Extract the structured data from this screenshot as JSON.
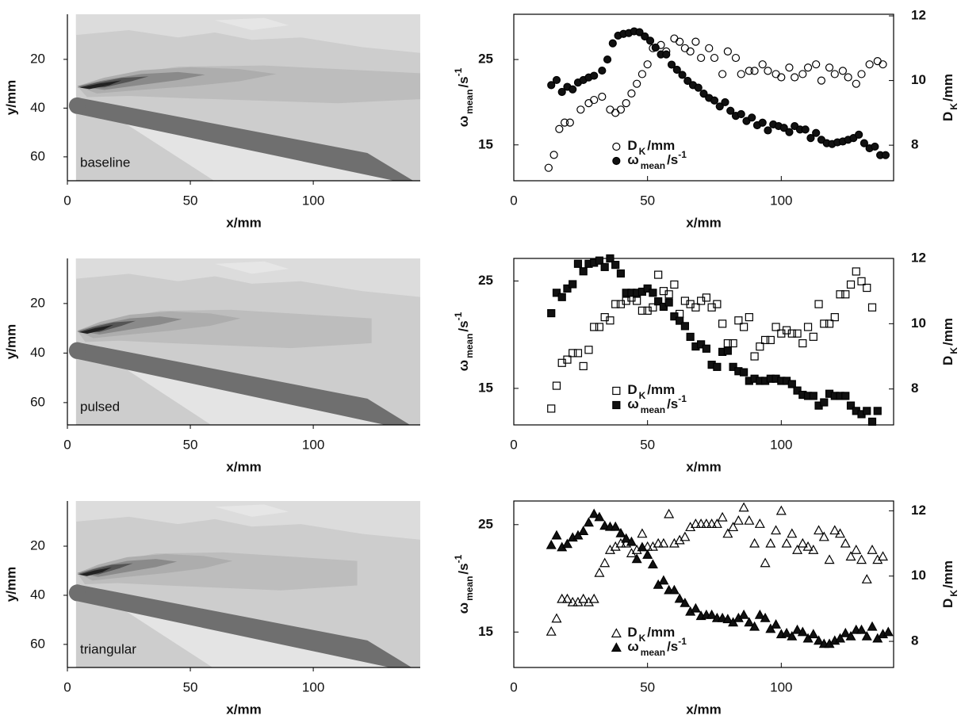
{
  "chart_data": [
    {
      "type": "contour",
      "label": "baseline",
      "xlabel": "x/mm",
      "ylabel": "y/mm",
      "xlim": [
        0,
        143.5
      ],
      "ylim": [
        1.5,
        69.8
      ],
      "y_reversed": true,
      "xticks": [
        0,
        50,
        100
      ],
      "yticks": [
        20,
        40,
        60
      ]
    },
    {
      "type": "scatter",
      "xlabel": "x/mm",
      "ylabel": {
        "symbol": "ω",
        "sub": "mean",
        "unit": "/s",
        "sup": "-1"
      },
      "y2label": {
        "symbol": "D",
        "sub": "K",
        "unit": "/mm"
      },
      "xlim": [
        0,
        142
      ],
      "ylim": [
        10.8,
        30.3
      ],
      "y2lim": [
        6.9,
        12.05
      ],
      "xticks": [
        0,
        50,
        100
      ],
      "yticks": [
        15,
        25
      ],
      "y2ticks": [
        8,
        10,
        12
      ],
      "legend": "lower center",
      "series": [
        {
          "name": {
            "symbol": "D",
            "sub": "K",
            "unit": "/mm"
          },
          "marker": "circle",
          "fill": "none",
          "color": "#000000",
          "axis": "y2",
          "x": [
            13,
            15,
            17,
            19,
            21,
            25,
            28,
            30,
            33,
            36,
            38,
            40,
            42,
            44,
            46,
            48,
            50,
            52,
            55,
            57,
            60,
            62,
            64,
            66,
            68,
            70,
            73,
            75,
            78,
            80,
            83,
            85,
            88,
            90,
            93,
            95,
            98,
            100,
            103,
            105,
            108,
            110,
            113,
            115,
            118,
            120,
            123,
            125,
            128,
            130,
            133,
            136,
            138
          ],
          "values": [
            7.3,
            7.7,
            8.5,
            8.7,
            8.7,
            9.1,
            9.3,
            9.4,
            9.5,
            9.1,
            9.0,
            9.1,
            9.3,
            9.6,
            9.9,
            10.2,
            10.5,
            11.0,
            11.1,
            10.9,
            11.3,
            11.2,
            11.0,
            10.9,
            11.2,
            10.7,
            11.0,
            10.7,
            10.2,
            10.9,
            10.7,
            10.2,
            10.3,
            10.3,
            10.5,
            10.3,
            10.2,
            10.1,
            10.4,
            10.1,
            10.2,
            10.4,
            10.5,
            10.0,
            10.4,
            10.2,
            10.3,
            10.1,
            9.9,
            10.2,
            10.5,
            10.6,
            10.5
          ]
        },
        {
          "name": {
            "symbol": "ω",
            "sub": "mean",
            "unit": "/s",
            "sup": "-1"
          },
          "marker": "circle",
          "fill": "#111111",
          "color": "#000000",
          "x": [
            14,
            16,
            18,
            20,
            22,
            24,
            26,
            28,
            30,
            33,
            35,
            37,
            39,
            41,
            43,
            45,
            47,
            49,
            51,
            53,
            55,
            57,
            59,
            61,
            63,
            65,
            67,
            69,
            71,
            73,
            75,
            77,
            79,
            81,
            83,
            85,
            87,
            89,
            91,
            93,
            95,
            97,
            99,
            101,
            103,
            105,
            107,
            109,
            111,
            113,
            115,
            117,
            119,
            121,
            123,
            125,
            127,
            129,
            131,
            133,
            135,
            137,
            139
          ],
          "values": [
            22.0,
            22.6,
            21.2,
            21.8,
            21.5,
            22.3,
            22.6,
            22.9,
            23.1,
            23.7,
            25.0,
            26.9,
            27.8,
            28.0,
            28.1,
            28.3,
            28.2,
            27.7,
            27.2,
            26.4,
            25.6,
            25.6,
            24.4,
            23.8,
            23.2,
            22.5,
            22.0,
            21.7,
            21.0,
            20.5,
            20.2,
            19.5,
            20.0,
            19.0,
            18.4,
            18.6,
            17.8,
            18.2,
            17.3,
            17.6,
            16.7,
            17.4,
            17.2,
            17.0,
            16.5,
            17.2,
            16.8,
            16.8,
            15.8,
            16.4,
            15.6,
            15.2,
            15.1,
            15.3,
            15.4,
            15.6,
            15.8,
            16.2,
            15.2,
            14.6,
            14.8,
            13.8,
            13.8
          ]
        }
      ]
    },
    {
      "type": "contour",
      "label": "pulsed",
      "xlabel": "x/mm",
      "ylabel": "y/mm",
      "xlim": [
        0,
        143.5
      ],
      "ylim": [
        1.8,
        69
      ],
      "y_reversed": true,
      "xticks": [
        0,
        50,
        100
      ],
      "yticks": [
        20,
        40,
        60
      ]
    },
    {
      "type": "scatter",
      "xlabel": "x/mm",
      "ylabel": {
        "symbol": "ω",
        "sub": "mean",
        "unit": "/s",
        "sup": "-1"
      },
      "y2label": {
        "symbol": "D",
        "sub": "K",
        "unit": "/mm"
      },
      "xlim": [
        0,
        142
      ],
      "ylim": [
        11.6,
        27.1
      ],
      "y2lim": [
        6.9,
        12
      ],
      "xticks": [
        0,
        50,
        100
      ],
      "yticks": [
        15,
        25
      ],
      "y2ticks": [
        8,
        10,
        12
      ],
      "legend": "lower center",
      "series": [
        {
          "name": {
            "symbol": "D",
            "sub": "K",
            "unit": "/mm"
          },
          "marker": "square",
          "fill": "none",
          "color": "#000000",
          "axis": "y2",
          "x": [
            14,
            16,
            18,
            20,
            22,
            24,
            26,
            28,
            30,
            32,
            34,
            36,
            38,
            40,
            42,
            44,
            46,
            48,
            50,
            52,
            54,
            56,
            58,
            60,
            62,
            64,
            66,
            68,
            70,
            72,
            74,
            76,
            78,
            80,
            82,
            84,
            86,
            88,
            90,
            92,
            94,
            96,
            98,
            100,
            102,
            104,
            106,
            108,
            110,
            112,
            114,
            116,
            118,
            120,
            122,
            124,
            126,
            128,
            130,
            132,
            134
          ],
          "values": [
            7.4,
            8.1,
            8.8,
            8.9,
            9.1,
            9.1,
            8.7,
            9.2,
            9.9,
            9.9,
            10.2,
            10.1,
            10.6,
            10.6,
            10.7,
            10.8,
            10.7,
            10.4,
            10.4,
            10.5,
            11.5,
            11.0,
            10.9,
            11.2,
            10.3,
            10.7,
            10.6,
            10.5,
            10.7,
            10.8,
            10.5,
            10.6,
            10.0,
            9.4,
            9.4,
            10.1,
            9.9,
            10.2,
            9.0,
            9.3,
            9.5,
            9.5,
            9.9,
            9.7,
            9.8,
            9.7,
            9.7,
            9.4,
            9.9,
            9.6,
            10.6,
            10.0,
            10.0,
            10.2,
            10.9,
            10.9,
            11.2,
            11.6,
            11.3,
            11.1,
            10.5
          ]
        },
        {
          "name": {
            "symbol": "ω",
            "sub": "mean",
            "unit": "/s",
            "sup": "-1"
          },
          "marker": "square",
          "fill": "#111111",
          "color": "#000000",
          "x": [
            14,
            16,
            18,
            20,
            22,
            24,
            26,
            28,
            30,
            32,
            34,
            36,
            38,
            40,
            42,
            44,
            46,
            48,
            50,
            52,
            54,
            56,
            58,
            60,
            62,
            64,
            66,
            68,
            70,
            72,
            74,
            76,
            78,
            80,
            82,
            84,
            86,
            88,
            90,
            92,
            94,
            96,
            98,
            100,
            102,
            104,
            106,
            108,
            110,
            112,
            114,
            116,
            118,
            120,
            122,
            124,
            126,
            128,
            130,
            132,
            134,
            136
          ],
          "values": [
            22.0,
            23.9,
            23.5,
            24.3,
            24.7,
            26.6,
            25.9,
            26.6,
            26.7,
            26.9,
            26.3,
            27.1,
            26.5,
            25.7,
            23.9,
            23.9,
            23.9,
            24.0,
            24.3,
            23.9,
            23.1,
            22.6,
            23.0,
            21.7,
            21.3,
            20.8,
            19.8,
            18.9,
            19.1,
            18.7,
            17.2,
            17.0,
            18.4,
            18.5,
            17.0,
            16.6,
            16.5,
            15.7,
            15.9,
            15.7,
            15.7,
            15.9,
            15.9,
            15.7,
            15.7,
            15.4,
            14.8,
            14.4,
            14.3,
            14.3,
            13.4,
            13.7,
            14.5,
            14.3,
            14.3,
            14.3,
            13.4,
            12.9,
            12.6,
            12.9,
            11.9,
            12.9
          ]
        }
      ]
    },
    {
      "type": "contour",
      "label": "triangular",
      "xlabel": "x/mm",
      "ylabel": "y/mm",
      "xlim": [
        0,
        143.5
      ],
      "ylim": [
        1.6,
        69.4
      ],
      "y_reversed": true,
      "xticks": [
        0,
        50,
        100
      ],
      "yticks": [
        20,
        40,
        60
      ]
    },
    {
      "type": "scatter",
      "xlabel": "x/mm",
      "ylabel": {
        "symbol": "ω",
        "sub": "mean",
        "unit": "/s",
        "sup": "-1"
      },
      "y2label": {
        "symbol": "D",
        "sub": "K",
        "unit": "/mm"
      },
      "xlim": [
        0,
        142
      ],
      "ylim": [
        11.7,
        27.2
      ],
      "y2lim": [
        7.2,
        12.3
      ],
      "xticks": [
        0,
        50,
        100
      ],
      "yticks": [
        15,
        25
      ],
      "y2ticks": [
        8,
        10,
        12
      ],
      "legend": "lower center",
      "series": [
        {
          "name": {
            "symbol": "D",
            "sub": "K",
            "unit": "/mm"
          },
          "marker": "triangle",
          "fill": "none",
          "color": "#000000",
          "axis": "y2",
          "x": [
            14,
            16,
            18,
            20,
            22,
            24,
            26,
            28,
            30,
            32,
            34,
            36,
            38,
            40,
            42,
            44,
            46,
            48,
            50,
            52,
            54,
            56,
            58,
            60,
            62,
            64,
            66,
            68,
            70,
            72,
            74,
            76,
            78,
            80,
            82,
            84,
            86,
            88,
            90,
            92,
            94,
            96,
            98,
            100,
            102,
            104,
            106,
            108,
            110,
            112,
            114,
            116,
            118,
            120,
            122,
            124,
            126,
            128,
            130,
            132,
            134,
            136,
            138
          ],
          "values": [
            8.3,
            8.7,
            9.3,
            9.3,
            9.2,
            9.2,
            9.3,
            9.2,
            9.3,
            10.1,
            10.4,
            10.8,
            10.9,
            11.0,
            11.0,
            10.7,
            10.8,
            11.3,
            10.9,
            10.9,
            11.0,
            11.0,
            11.9,
            11.0,
            11.1,
            11.2,
            11.5,
            11.6,
            11.6,
            11.6,
            11.6,
            11.6,
            11.8,
            11.3,
            11.5,
            11.7,
            12.1,
            11.7,
            11.0,
            11.6,
            10.4,
            11.0,
            11.4,
            12.0,
            11.0,
            11.3,
            10.8,
            11.0,
            10.9,
            10.8,
            11.4,
            11.2,
            10.5,
            11.4,
            11.3,
            11.0,
            10.6,
            10.8,
            10.5,
            9.9,
            10.8,
            10.5,
            10.6
          ]
        },
        {
          "name": {
            "symbol": "ω",
            "sub": "mean",
            "unit": "/s",
            "sup": "-1"
          },
          "marker": "triangle",
          "fill": "#111111",
          "color": "#000000",
          "x": [
            14,
            16,
            18,
            20,
            22,
            24,
            26,
            28,
            30,
            32,
            34,
            36,
            38,
            40,
            42,
            44,
            46,
            48,
            50,
            52,
            54,
            56,
            58,
            60,
            62,
            64,
            66,
            68,
            70,
            72,
            74,
            76,
            78,
            80,
            82,
            84,
            86,
            88,
            90,
            92,
            94,
            96,
            98,
            100,
            102,
            104,
            106,
            108,
            110,
            112,
            114,
            116,
            118,
            120,
            122,
            124,
            126,
            128,
            130,
            132,
            134,
            136,
            138,
            140
          ],
          "values": [
            23.1,
            24.0,
            22.9,
            23.2,
            23.8,
            24.0,
            24.4,
            25.2,
            26.0,
            25.7,
            24.9,
            24.8,
            24.8,
            24.2,
            23.7,
            23.4,
            21.8,
            22.9,
            22.2,
            21.3,
            19.4,
            19.8,
            18.9,
            18.9,
            18.1,
            17.7,
            16.9,
            17.2,
            16.5,
            16.6,
            16.6,
            16.3,
            16.3,
            16.2,
            15.9,
            16.3,
            16.6,
            15.9,
            15.5,
            16.6,
            16.3,
            15.3,
            15.7,
            14.8,
            14.9,
            14.6,
            15.2,
            15.0,
            14.4,
            14.8,
            14.2,
            13.9,
            13.9,
            14.2,
            14.4,
            14.9,
            14.6,
            15.2,
            15.2,
            14.6,
            15.5,
            14.4,
            14.8,
            15.0
          ]
        }
      ]
    }
  ]
}
